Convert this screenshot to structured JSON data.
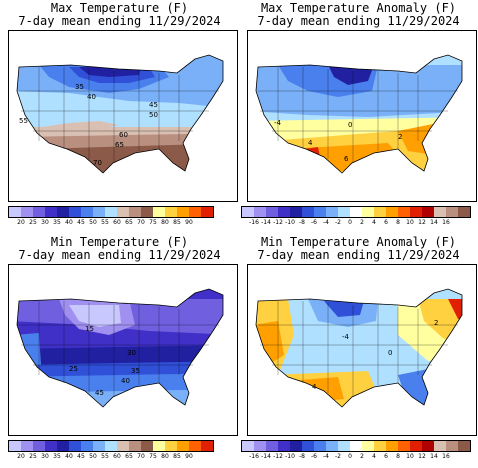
{
  "panels": [
    {
      "title": "Max Temperature (F)",
      "subtitle": "7-day mean ending 11/29/2024",
      "colorbar": {
        "colors": [
          "#c8c8ff",
          "#a090f0",
          "#7060e0",
          "#4030c8",
          "#2020a0",
          "#3050d8",
          "#4a80ee",
          "#7ab0f8",
          "#b0e0ff",
          "#d9c0b2",
          "#b99080",
          "#8c5a48",
          "#ffffa0",
          "#ffd040",
          "#ffa000",
          "#ff6000",
          "#e02000"
        ],
        "ticks": [
          "20",
          "25",
          "30",
          "35",
          "40",
          "45",
          "50",
          "55",
          "60",
          "65",
          "70",
          "75",
          "80",
          "85",
          "90"
        ]
      },
      "contour_labels": [
        "35",
        "40",
        "45",
        "50",
        "55",
        "65",
        "60",
        "70"
      ]
    },
    {
      "title": "Max Temperature Anomaly (F)",
      "subtitle": "7-day mean ending 11/29/2024",
      "colorbar": {
        "colors": [
          "#c8c8ff",
          "#a090f0",
          "#7060e0",
          "#4030c8",
          "#2020a0",
          "#3050d8",
          "#4a80ee",
          "#7ab0f8",
          "#b0e0ff",
          "#ffffff",
          "#ffffa0",
          "#ffd040",
          "#ffa000",
          "#ff6000",
          "#e02000",
          "#b00000",
          "#d9c0b2",
          "#b99080",
          "#8c5a48"
        ],
        "ticks": [
          "-16",
          "-14",
          "-12",
          "-10",
          "-8",
          "-6",
          "-4",
          "-2",
          "0",
          "2",
          "4",
          "6",
          "8",
          "10",
          "12",
          "14",
          "16"
        ]
      },
      "contour_labels": [
        "-4",
        "4",
        "0",
        "2",
        "6"
      ]
    },
    {
      "title": "Min Temperature (F)",
      "subtitle": "7-day mean ending 11/29/2024",
      "colorbar": {
        "colors": [
          "#c8c8ff",
          "#a090f0",
          "#7060e0",
          "#4030c8",
          "#2020a0",
          "#3050d8",
          "#4a80ee",
          "#7ab0f8",
          "#b0e0ff",
          "#d9c0b2",
          "#b99080",
          "#8c5a48",
          "#ffffa0",
          "#ffd040",
          "#ffa000",
          "#ff6000",
          "#e02000"
        ],
        "ticks": [
          "20",
          "25",
          "30",
          "35",
          "40",
          "45",
          "50",
          "55",
          "60",
          "65",
          "70",
          "75",
          "80",
          "85",
          "90"
        ]
      },
      "contour_labels": [
        "15",
        "30",
        "25",
        "35",
        "40",
        "45"
      ]
    },
    {
      "title": "Min Temperature Anomaly (F)",
      "subtitle": "7-day mean ending 11/29/2024",
      "colorbar": {
        "colors": [
          "#c8c8ff",
          "#a090f0",
          "#7060e0",
          "#4030c8",
          "#2020a0",
          "#3050d8",
          "#4a80ee",
          "#7ab0f8",
          "#b0e0ff",
          "#ffffff",
          "#ffffa0",
          "#ffd040",
          "#ffa000",
          "#ff6000",
          "#e02000",
          "#b00000",
          "#d9c0b2",
          "#b99080",
          "#8c5a48"
        ],
        "ticks": [
          "-16",
          "-14",
          "-12",
          "-10",
          "-8",
          "-6",
          "-4",
          "-2",
          "0",
          "2",
          "4",
          "6",
          "8",
          "10",
          "12",
          "14",
          "16"
        ]
      },
      "contour_labels": [
        "-4",
        "0",
        "4",
        "2"
      ]
    }
  ]
}
